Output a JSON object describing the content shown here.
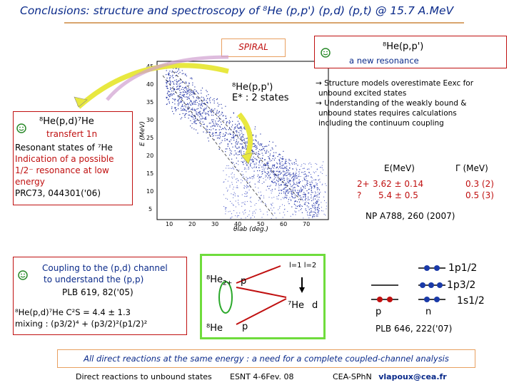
{
  "title": "Conclusions: structure and spectroscopy of ⁸He  (p,p') (p,d) (p,t) @ 15.7 A.MeV",
  "spiral_label": "SPIRAL",
  "plot": {
    "y_ticks": [
      "45",
      "40",
      "35",
      "30",
      "25",
      "20",
      "15",
      "10",
      "5"
    ],
    "y_label": "E (MeV)",
    "x_ticks": [
      "10",
      "20",
      "30",
      "40",
      "50",
      "60",
      "70"
    ],
    "x_label": "θlab (deg.)"
  },
  "pp_center": {
    "reaction": "⁸He(p,p')",
    "states": "E* : 2 states"
  },
  "pd_box": {
    "reaction": "⁸He(p,d)⁷He",
    "line1": "transfert 1n",
    "line2": "Resonant states of ⁷He",
    "line3": "Indication of a possible",
    "line4": "1/2⁻ resonance at low",
    "line5": "energy",
    "ref": "PRC73, 044301('06)"
  },
  "pp_box": {
    "reaction": "⁸He(p,p')",
    "subtitle": "a new resonance"
  },
  "structure": {
    "line1": "→ Structure models overestimate Eexc for",
    "line2": "unbound excited states",
    "line3": "→ Understanding of the weakly bound &",
    "line4": "unbound states requires calculations",
    "line5": "including the continuum coupling"
  },
  "resonance_table": {
    "col1": "E(MeV)",
    "col2": "Γ (MeV)",
    "row1_j": "2+",
    "row1_e": "3.62 ± 0.14",
    "row1_w": "0.3 (2)",
    "row2_j": "?",
    "row2_e": "5.4 ± 0.5",
    "row2_w": "0.5 (3)"
  },
  "np_ref": "NP A788, 260 (2007)",
  "coupling_box": {
    "line1": "Coupling to the (p,d) channel",
    "line2": "to understand the (p,p)",
    "line3": "PLB 619, 82('05)",
    "line4": "⁸He(p,d)⁷He C²S = 4.4 ± 1.3",
    "line5": "mixing : (p3/2)⁴ + (p3/2)²(p1/2)²"
  },
  "diagram": {
    "he8_2plus": "⁸He",
    "he8_2plus_sub": "2+",
    "p_top": "p",
    "l_labels": "l=1  l=2",
    "he7": "⁷He",
    "d": "d",
    "he8": "⁸He",
    "p_bottom": "p"
  },
  "shells": {
    "p1": "1p1/2",
    "p3": "1p3/2",
    "s1": "1s1/2",
    "p_label": "p",
    "n_label": "n",
    "ref": "PLB 646, 222('07)"
  },
  "conclusion": "All direct reactions at the same energy : a need for a complete coupled-channel analysis",
  "footer": {
    "left": "Direct reactions to unbound states",
    "mid": "ESNT 4-6Fev. 08",
    "right_org": "CEA-SPhN",
    "right_email": "vlapoux@cea.fr"
  },
  "colors": {
    "title_blue": "#0a2a8a",
    "red": "#c01010",
    "green": "#6fdc3c",
    "arrow_yellow": "#e8e840"
  }
}
